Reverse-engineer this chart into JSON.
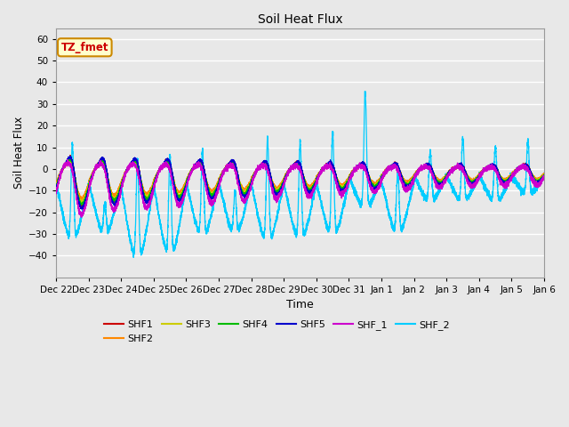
{
  "title": "Soil Heat Flux",
  "xlabel": "Time",
  "ylabel": "Soil Heat Flux",
  "ylim": [
    -50,
    65
  ],
  "yticks": [
    -40,
    -30,
    -20,
    -10,
    0,
    10,
    20,
    30,
    40,
    50,
    60
  ],
  "plot_bg_color": "#e8e8e8",
  "grid_color": "white",
  "series_colors": {
    "SHF1": "#cc0000",
    "SHF2": "#ff8800",
    "SHF3": "#cccc00",
    "SHF4": "#00bb00",
    "SHF5": "#0000cc",
    "SHF_1": "#cc00cc",
    "SHF_2": "#00ccff"
  },
  "annotation_text": "TZ_fmet",
  "annotation_color": "#cc0000",
  "annotation_bg": "#ffffcc",
  "annotation_edge": "#cc8800",
  "xtick_labels": [
    "Dec 22",
    "Dec 23",
    "Dec 24",
    "Dec 25",
    "Dec 26",
    "Dec 27",
    "Dec 28",
    "Dec 29",
    "Dec 30",
    "Dec 31",
    "Jan 1",
    "Jan 2",
    "Jan 3",
    "Jan 4",
    "Jan 5",
    "Jan 6"
  ],
  "xtick_positions": [
    0,
    1,
    2,
    3,
    4,
    5,
    6,
    7,
    8,
    9,
    10,
    11,
    12,
    13,
    14,
    15
  ]
}
